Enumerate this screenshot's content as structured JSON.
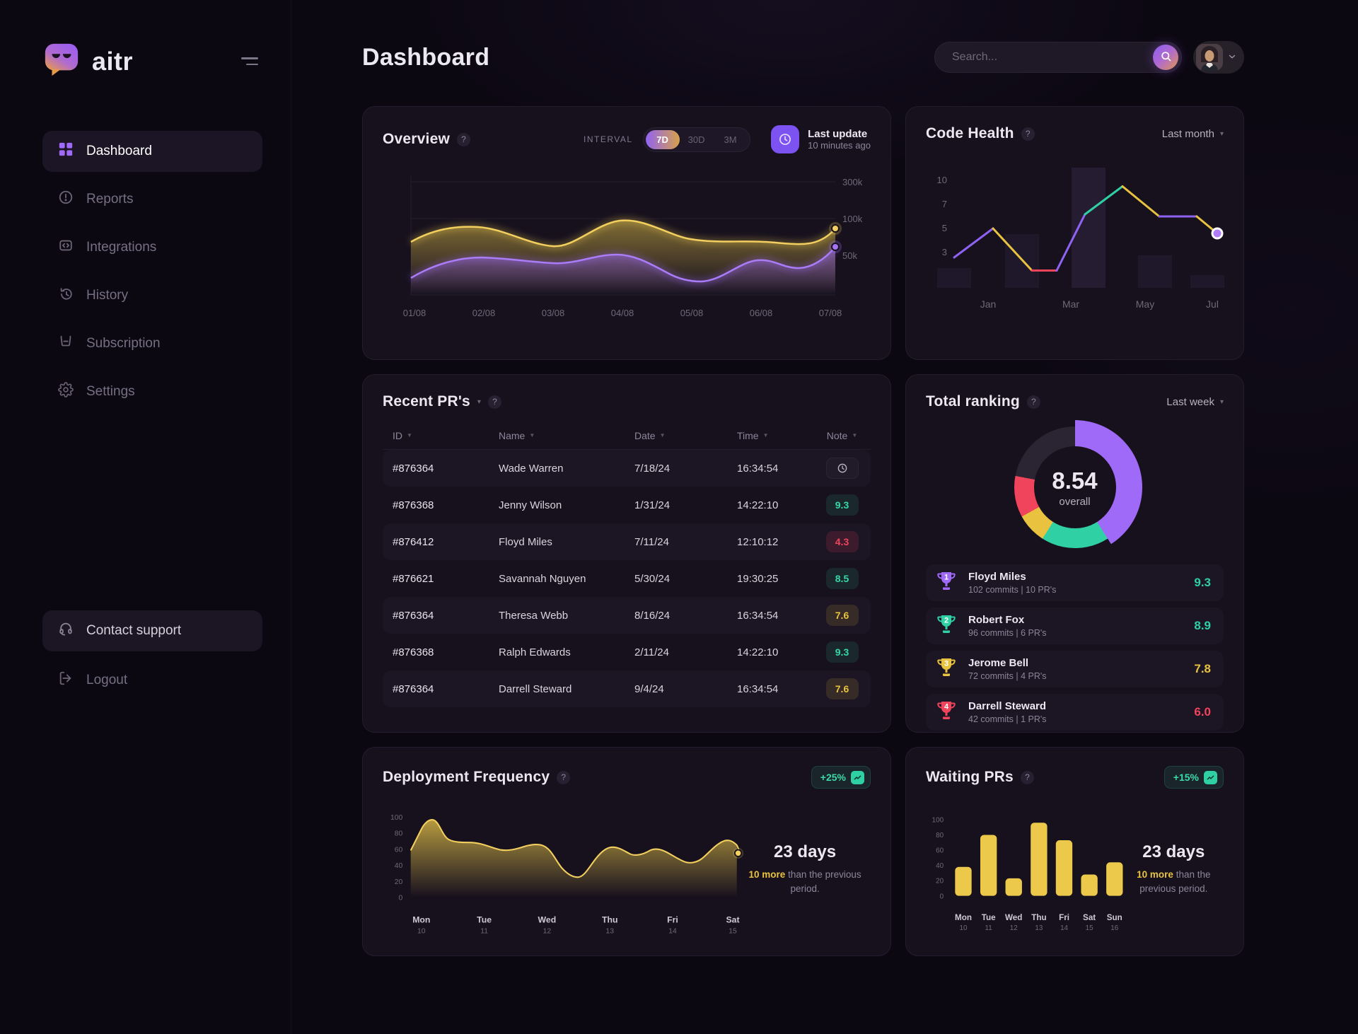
{
  "sidebar": {
    "brand": "aitr",
    "items": [
      {
        "label": "Dashboard",
        "active": true
      },
      {
        "label": "Reports",
        "active": false
      },
      {
        "label": "Integrations",
        "active": false
      },
      {
        "label": "History",
        "active": false
      },
      {
        "label": "Subscription",
        "active": false
      },
      {
        "label": "Settings",
        "active": false
      }
    ],
    "support_label": "Contact support",
    "logout_label": "Logout"
  },
  "header": {
    "title": "Dashboard",
    "search_placeholder": "Search..."
  },
  "overview": {
    "title": "Overview",
    "interval_label": "INTERVAL",
    "intervals": [
      "7D",
      "30D",
      "3M"
    ],
    "active_interval": "7D",
    "last_update_title": "Last update",
    "last_update_value": "10 minutes ago"
  },
  "code_health": {
    "title": "Code Health",
    "period": "Last month"
  },
  "recent_prs": {
    "title": "Recent PR's",
    "columns": [
      "ID",
      "Name",
      "Date",
      "Time",
      "Note"
    ],
    "rows": [
      {
        "id": "#876364",
        "name": "Wade Warren",
        "date": "7/18/24",
        "time": "16:34:54",
        "note": "clock-icon"
      },
      {
        "id": "#876368",
        "name": "Jenny Wilson",
        "date": "1/31/24",
        "time": "14:22:10",
        "note": "9.3",
        "note_color": "green"
      },
      {
        "id": "#876412",
        "name": "Floyd Miles",
        "date": "7/11/24",
        "time": "12:10:12",
        "note": "4.3",
        "note_color": "red"
      },
      {
        "id": "#876621",
        "name": "Savannah Nguyen",
        "date": "5/30/24",
        "time": "19:30:25",
        "note": "8.5",
        "note_color": "green"
      },
      {
        "id": "#876364",
        "name": "Theresa Webb",
        "date": "8/16/24",
        "time": "16:34:54",
        "note": "7.6",
        "note_color": "yellow"
      },
      {
        "id": "#876368",
        "name": "Ralph Edwards",
        "date": "2/11/24",
        "time": "14:22:10",
        "note": "9.3",
        "note_color": "green"
      },
      {
        "id": "#876364",
        "name": "Darrell Steward",
        "date": "9/4/24",
        "time": "16:34:54",
        "note": "7.6",
        "note_color": "yellow"
      }
    ]
  },
  "total_ranking": {
    "title": "Total ranking",
    "period": "Last week",
    "score": "8.54",
    "score_label": "overall",
    "donut": {
      "segments": [
        {
          "label": "rank-1",
          "pct": 41,
          "color": "#a06af8"
        },
        {
          "label": "rank-2",
          "pct": 18,
          "color": "#2fd0a4"
        },
        {
          "label": "rank-3",
          "pct": 8,
          "color": "#e9c33f"
        },
        {
          "label": "rank-4",
          "pct": 11,
          "color": "#f0435c"
        },
        {
          "label": "rest",
          "pct": 22,
          "color": "#2a2433"
        }
      ]
    },
    "entries": [
      {
        "rank": "1",
        "name": "Floyd Miles",
        "stats": "102 commits  |  10 PR's",
        "score": "9.3",
        "color": "#a06af8",
        "score_color": "green"
      },
      {
        "rank": "2",
        "name": "Robert Fox",
        "stats": "96 commits  |  6 PR's",
        "score": "8.9",
        "color": "#2fd0a4",
        "score_color": "green"
      },
      {
        "rank": "3",
        "name": "Jerome Bell",
        "stats": "72 commits  |  4 PR's",
        "score": "7.8",
        "color": "#e9c33f",
        "score_color": "yellow"
      },
      {
        "rank": "4",
        "name": "Darrell Steward",
        "stats": "42 commits  |  1 PR's",
        "score": "6.0",
        "color": "#f0435c",
        "score_color": "red"
      }
    ]
  },
  "deployment": {
    "title": "Deployment Frequency",
    "badge": "+25%",
    "duration": "23 days",
    "delta": "10 more",
    "delta_suffix": " than the previous period."
  },
  "waiting": {
    "title": "Waiting PRs",
    "badge": "+15%",
    "duration": "23 days",
    "delta": "10 more",
    "delta_suffix": " than the previous period."
  },
  "chart_data": [
    {
      "name": "Overview",
      "type": "area",
      "x": [
        "01/08",
        "02/08",
        "03/08",
        "04/08",
        "05/08",
        "06/08",
        "07/08"
      ],
      "y_axis_labels": [
        "300k",
        "100k",
        "50k"
      ],
      "grid": true,
      "legend": false,
      "series": [
        {
          "name": "commits-yellow",
          "color": "#ecc94b",
          "values_k": [
            100,
            130,
            95,
            150,
            105,
            100,
            135
          ]
        },
        {
          "name": "commits-purple",
          "color": "#9a66f5",
          "values_k": [
            35,
            75,
            65,
            80,
            30,
            70,
            90
          ]
        }
      ]
    },
    {
      "name": "Code Health",
      "type": "line",
      "x": [
        "Jan",
        "Mar",
        "May",
        "Jul"
      ],
      "y_ticks": [
        "10",
        "7",
        "5",
        "3"
      ],
      "ylim": [
        0,
        10
      ],
      "values": [
        2.6,
        5.0,
        1.5,
        1.5,
        6.2,
        8.5,
        6.0,
        6.0,
        4.5
      ],
      "segment_colors": [
        "#8f63f2",
        "#e9c33f",
        "#f0435c",
        "#8f63f2",
        "#2fd0a4",
        "#e9c33f",
        "#8f63f2",
        "#e9c33f"
      ],
      "background_bar_values": [
        1.5,
        4.5,
        10,
        2.7,
        1.0
      ]
    },
    {
      "name": "Deployment Frequency",
      "type": "area",
      "y_ticks": [
        "100",
        "80",
        "60",
        "40",
        "20",
        "0"
      ],
      "ylim": [
        0,
        100
      ],
      "x": [
        {
          "day": "Mon",
          "date": "10"
        },
        {
          "day": "Tue",
          "date": "11"
        },
        {
          "day": "Wed",
          "date": "12"
        },
        {
          "day": "Thu",
          "date": "13"
        },
        {
          "day": "Fri",
          "date": "14"
        },
        {
          "day": "Sat",
          "date": "15"
        }
      ],
      "values": [
        68,
        97,
        65,
        57,
        62,
        30,
        68,
        55,
        62,
        48,
        73,
        55
      ],
      "color": "#ecc94b"
    },
    {
      "name": "Waiting PRs",
      "type": "bar",
      "y_ticks": [
        "100",
        "80",
        "60",
        "40",
        "20",
        "0"
      ],
      "ylim": [
        0,
        100
      ],
      "x": [
        {
          "day": "Mon",
          "date": "10"
        },
        {
          "day": "Tue",
          "date": "11"
        },
        {
          "day": "Wed",
          "date": "12"
        },
        {
          "day": "Thu",
          "date": "13"
        },
        {
          "day": "Fri",
          "date": "14"
        },
        {
          "day": "Sat",
          "date": "15"
        },
        {
          "day": "Sun",
          "date": "16"
        }
      ],
      "values": [
        38,
        80,
        23,
        96,
        73,
        28,
        44
      ],
      "color": "#ecc94b"
    }
  ]
}
